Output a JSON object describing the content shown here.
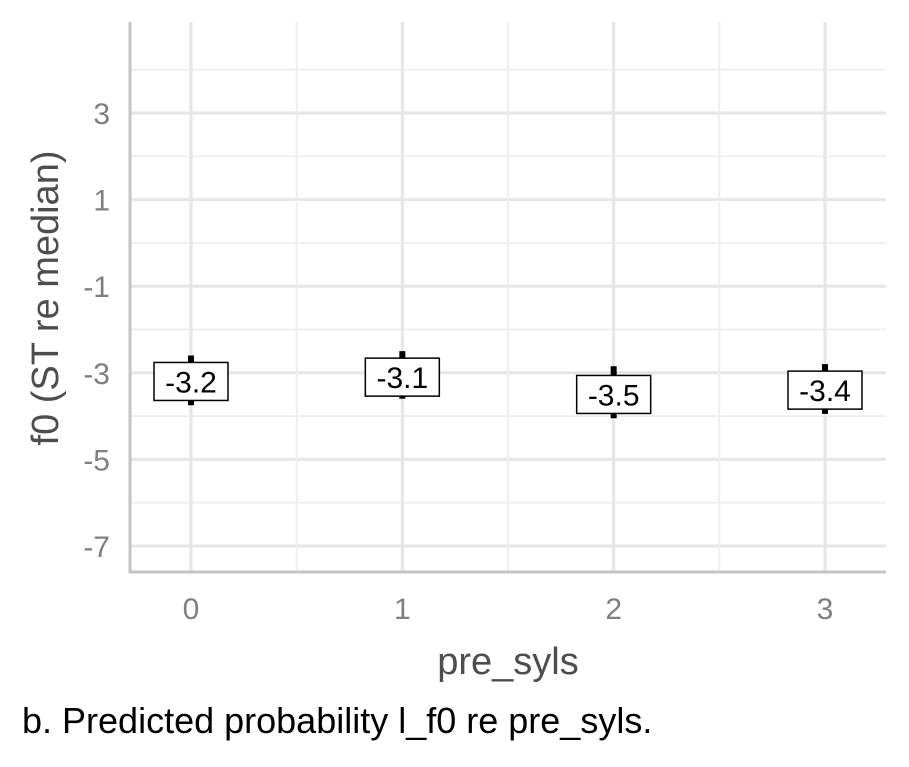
{
  "chart_data": {
    "type": "scatter",
    "xlabel": "pre_syls",
    "ylabel": "f0 (ST re median)",
    "categories": [
      "0",
      "1",
      "2",
      "3"
    ],
    "values": [
      -3.2,
      -3.1,
      -3.5,
      -3.4
    ],
    "labels": [
      "-3.2",
      "-3.1",
      "-3.5",
      "-3.4"
    ],
    "error_low": [
      -3.75,
      -3.6,
      -4.05,
      -3.95
    ],
    "error_high": [
      -2.6,
      -2.5,
      -2.85,
      -2.8
    ],
    "yticks": [
      3,
      1,
      -1,
      -3,
      -5,
      -7
    ],
    "ytick_labels": [
      "3",
      "1",
      "-1",
      "-3",
      "-5",
      "-7"
    ],
    "ylim": [
      -7.6,
      5.0
    ],
    "grid": true,
    "legend": "none"
  },
  "caption": "b. Predicted probability l_f0 re pre_syls."
}
